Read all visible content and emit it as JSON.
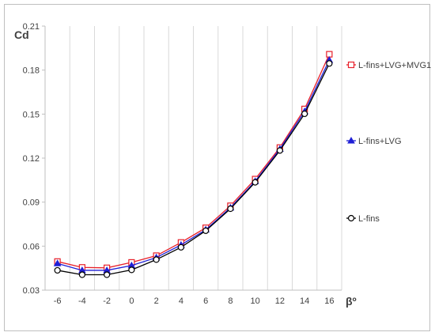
{
  "chart_data": {
    "type": "line",
    "title": "",
    "xlabel": "βº",
    "ylabel": "Cd",
    "x": [
      -6,
      -4,
      -2,
      0,
      2,
      4,
      6,
      8,
      10,
      12,
      14,
      16
    ],
    "xlim": [
      -7,
      17
    ],
    "ylim": [
      0.03,
      0.21
    ],
    "xticks": [
      "-6",
      "-4",
      "-2",
      "0",
      "2",
      "4",
      "6",
      "8",
      "10",
      "12",
      "14",
      "16"
    ],
    "yticks": [
      "0.03",
      "0.06",
      "0.09",
      "0.12",
      "0.15",
      "0.18",
      "0.21"
    ],
    "grid": "vertical",
    "legend": "right",
    "series": [
      {
        "name": "L-fins+LVG+MVG1",
        "color": "#e8202a",
        "marker": "square",
        "values": [
          0.0495,
          0.0455,
          0.0452,
          0.0489,
          0.0535,
          0.0625,
          0.0725,
          0.0875,
          0.1057,
          0.1272,
          0.1535,
          0.1908
        ]
      },
      {
        "name": "L-fins+LVG",
        "color": "#1f1fd6",
        "marker": "triangle",
        "values": [
          0.0482,
          0.0435,
          0.0435,
          0.0468,
          0.0522,
          0.0608,
          0.0712,
          0.0862,
          0.1042,
          0.1262,
          0.1518,
          0.1868
        ]
      },
      {
        "name": "L-fins",
        "color": "#000000",
        "marker": "circle",
        "values": [
          0.0435,
          0.0405,
          0.0405,
          0.0438,
          0.0508,
          0.0592,
          0.0705,
          0.0855,
          0.1035,
          0.1252,
          0.1502,
          0.1845
        ]
      }
    ]
  }
}
